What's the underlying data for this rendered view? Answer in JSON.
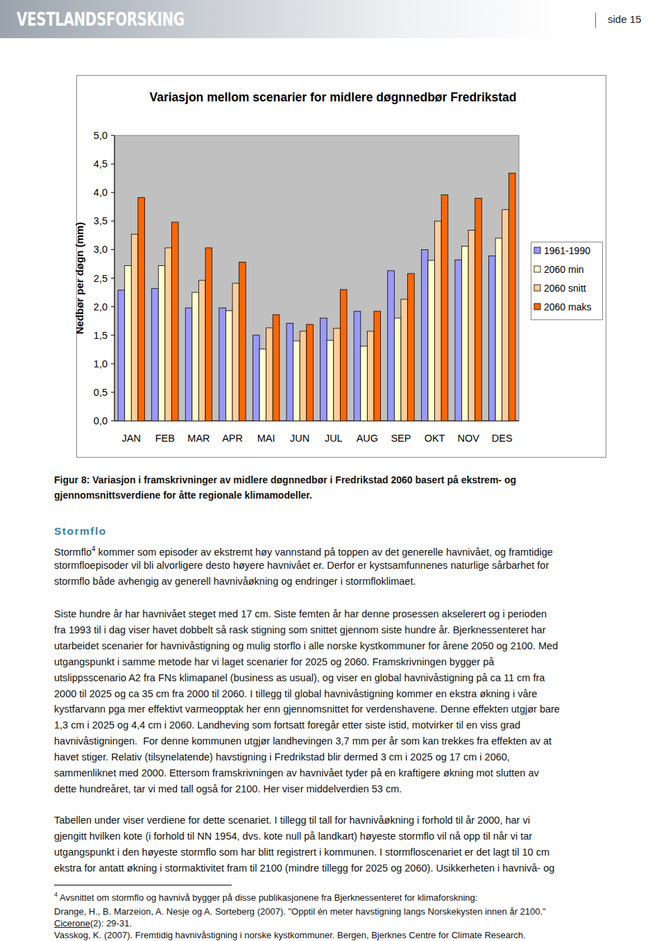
{
  "header": {
    "logo": "VESTLANDSFORSKING",
    "page": "side 15"
  },
  "chart_data": {
    "type": "bar",
    "title": "Variasjon mellom scenarier for midlere døgnnedbør Fredrikstad",
    "y_label": "Nedbør per døgn (mm)",
    "categories": [
      "JAN",
      "FEB",
      "MAR",
      "APR",
      "MAI",
      "JUN",
      "JUL",
      "AUG",
      "SEP",
      "OKT",
      "NOV",
      "DES"
    ],
    "series": [
      {
        "name": "1961-1990",
        "color": "#9999ff",
        "values": [
          2.29,
          2.32,
          1.98,
          1.98,
          1.5,
          1.71,
          1.8,
          1.92,
          2.63,
          3.0,
          2.82,
          2.89
        ]
      },
      {
        "name": "2060 min",
        "color": "#ffffcc",
        "values": [
          2.72,
          2.72,
          2.25,
          1.93,
          1.26,
          1.4,
          1.41,
          1.31,
          1.8,
          2.81,
          3.06,
          3.2
        ]
      },
      {
        "name": "2060 snitt",
        "color": "#ffcc99",
        "values": [
          3.27,
          3.03,
          2.46,
          2.41,
          1.63,
          1.57,
          1.62,
          1.57,
          2.13,
          3.5,
          3.34,
          3.7
        ]
      },
      {
        "name": "2060 maks",
        "color": "#ff6600",
        "values": [
          3.91,
          3.48,
          3.03,
          2.78,
          1.86,
          1.69,
          2.3,
          1.92,
          2.58,
          3.96,
          3.9,
          4.34
        ]
      }
    ],
    "ylim": [
      0,
      5
    ],
    "yticks": [
      {
        "value": 0,
        "label": "0,0"
      },
      {
        "value": 0.5,
        "label": "0,5"
      },
      {
        "value": 1,
        "label": "1,0"
      },
      {
        "value": 1.5,
        "label": "1,5"
      },
      {
        "value": 2,
        "label": "2,0"
      },
      {
        "value": 2.5,
        "label": "2,5"
      },
      {
        "value": 3,
        "label": "3,0"
      },
      {
        "value": 3.5,
        "label": "3,5"
      },
      {
        "value": 4,
        "label": "4,0"
      },
      {
        "value": 4.5,
        "label": "4,5"
      },
      {
        "value": 5,
        "label": "5,0"
      }
    ],
    "grid": false,
    "legend": "right"
  },
  "caption": [
    "Figur 8: Variasjon i framskrivninger av midlere døgnnedbør i Fredrikstad 2060 basert på ekstrem- og",
    "gjennomsnittsverdiene for åtte regionale klimamodeller."
  ],
  "section": {
    "heading": "Stormflo",
    "paragraphs": [
      [
        {
          "text": "Stormflo",
          "sup": "4",
          "rest": " kommer som episoder av ekstremt høy vannstand på toppen av det generelle havnivået, og framtidige"
        },
        "stormfloepisoder vil bli alvorligere desto høyere havnivået er. Derfor er kystsamfunnenes naturlige sårbarhet for",
        "stormflo både avhengig av generell havnivåøkning og endringer i stormfloklimaet."
      ],
      [
        "Siste hundre år har havnivået steget med 17 cm. Siste femten år har denne prosessen akselerert og i perioden",
        "fra 1993 til i dag viser havet dobbelt så rask stigning som snittet gjennom siste hundre år. Bjerknessenteret har",
        "utarbeidet scenarier for havnivåstigning og mulig storflo i alle norske kystkommuner for årene 2050 og 2100. Med",
        "utgangspunkt i samme metode har vi laget scenarier for 2025 og 2060. Framskrivningen bygger på",
        "utslippsscenario A2 fra FNs klimapanel (business as usual), og viser en global havnivåstigning på ca 11 cm fra",
        "2000 til 2025 og ca 35 cm fra 2000 til 2060. I tillegg til global havnivåstigning kommer en ekstra økning i våre",
        "kystfarvann pga mer effektivt varmeopptak her enn gjennomsnittet for verdenshavene. Denne effekten utgjør bare",
        "1,3 cm i 2025 og 4,4 cm i 2060. Landheving som fortsatt foregår etter siste istid, motvirker til en viss grad",
        "havnivåstigningen.  For denne kommunen utgjør landhevingen 3,7 mm per år som kan trekkes fra effekten av at",
        "havet stiger. Relativ (tilsynelatende) havstigning i Fredrikstad blir dermed 3 cm i 2025 og 17 cm i 2060,",
        "sammenliknet med 2000. Ettersom framskrivningen av havnivået tyder på en kraftigere økning mot slutten av",
        "dette hundreåret, tar vi med tall også for 2100. Her viser middelverdien 53 cm."
      ],
      [
        "Tabellen under viser verdiene for dette scenariet. I tillegg til tall for havnivåøkning i forhold til år 2000, har vi",
        "gjengitt hvilken kote (i forhold til NN 1954, dvs. kote null på landkart) høyeste stormflo vil nå opp til når vi tar",
        "utgangspunkt i den høyeste stormflo som har blitt registrert i kommunen. I stormfloscenariet er det lagt til 10 cm",
        "ekstra for antatt økning i stormaktivitet fram til 2100 (mindre tillegg for 2025 og 2060). Usikkerheten i havnivå- og"
      ]
    ]
  },
  "footnote": {
    "marker": "4",
    "lines": [
      "Avsnittet om stormflo og havnivå bygger på disse publikasjonene fra Bjerknessenteret for klimaforskning:",
      "Drange, H., B. Marzeion, A. Nesje og A. Sorteberg (2007). \"Opptil én meter havstigning langs Norskekysten innen år 2100.\"",
      {
        "underlined": "Cicerone",
        "rest": "(2): 29-31."
      },
      "Vasskog, K. (2007). Fremtidig havnivåstigning i norske kystkommuner. Bergen, Bjerknes Centre for Climate Research."
    ]
  }
}
